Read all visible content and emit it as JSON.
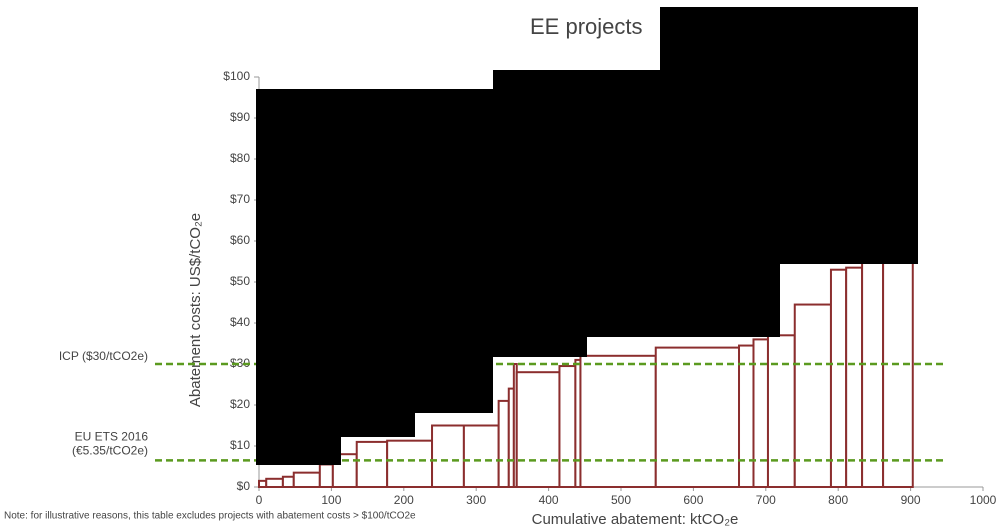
{
  "chart_data": {
    "type": "macc",
    "title": "EE projects",
    "x_label": "Cumulative abatement: ktCO₂e",
    "y_label": "Abatement costs: US$/tCO₂e",
    "note": "Note: for illustrative reasons, this table excludes projects with abatement costs > $100/tCO2e",
    "widths": [
      10,
      23,
      15,
      36,
      18,
      33,
      42,
      62,
      44,
      48,
      14,
      7,
      4,
      59,
      22,
      7,
      104,
      115,
      20,
      20,
      37,
      50,
      21,
      22,
      29,
      41
    ],
    "values": [
      1.5,
      2,
      2.5,
      3.5,
      5.5,
      8,
      11,
      11.3,
      15,
      15,
      21,
      24,
      30,
      28,
      29.5,
      31,
      32,
      34,
      34.5,
      36,
      37,
      44.5,
      53,
      53.5,
      55,
      60
    ],
    "color": "#8b2e2e",
    "thresholds": [
      {
        "label_lines": [
          "ICP ($30/tCO2e)"
        ],
        "value": 30
      },
      {
        "label_lines": [
          "EU ETS 2016",
          "(€5.35/tCO2e)"
        ],
        "value": 6.5
      }
    ],
    "threshold_color": "#5b9a1f",
    "xlim": [
      0,
      1000
    ],
    "xticks": [
      0,
      100,
      200,
      300,
      400,
      500,
      600,
      700,
      800,
      900,
      1000
    ],
    "ylim": [
      0,
      100
    ],
    "yticks": [
      {
        "value": 0,
        "label": "$0"
      },
      {
        "value": 10,
        "label": "$10"
      },
      {
        "value": 20,
        "label": "$20"
      },
      {
        "value": 30,
        "label": "$30"
      },
      {
        "value": 40,
        "label": "$40"
      },
      {
        "value": 50,
        "label": "$50"
      },
      {
        "value": 60,
        "label": "$60"
      },
      {
        "value": 70,
        "label": "$70"
      },
      {
        "value": 80,
        "label": "$80"
      },
      {
        "value": 90,
        "label": "$90"
      },
      {
        "value": 100,
        "label": "$100"
      }
    ]
  }
}
